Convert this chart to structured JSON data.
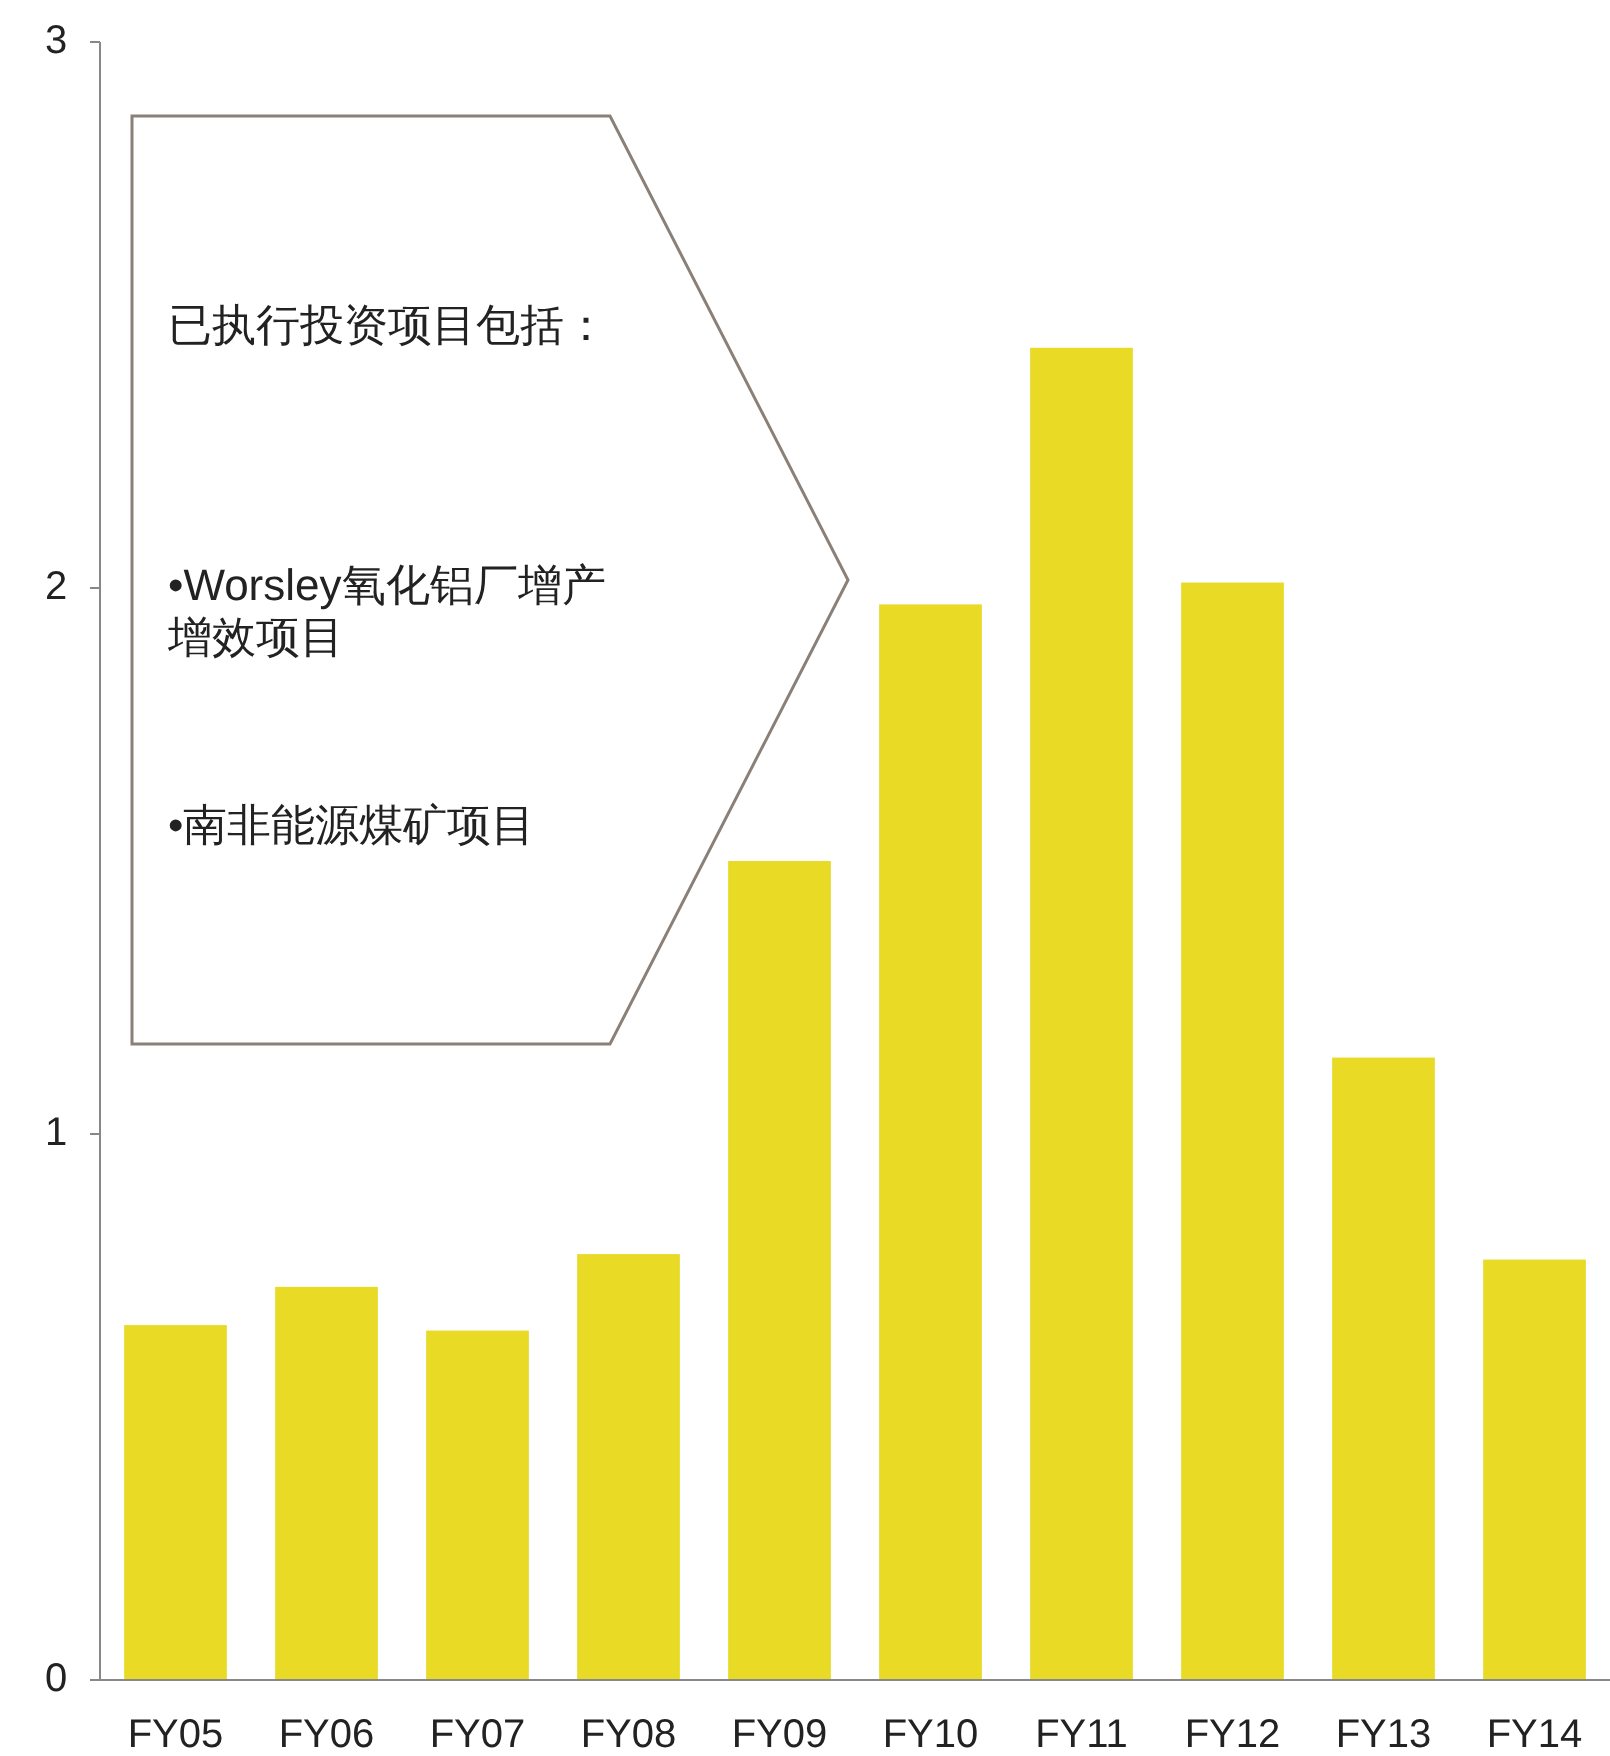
{
  "chart_data": {
    "type": "bar",
    "categories": [
      "FY05",
      "FY06",
      "FY07",
      "FY08",
      "FY09",
      "FY10",
      "FY11",
      "FY12",
      "FY13",
      "FY14"
    ],
    "values": [
      0.65,
      0.72,
      0.64,
      0.78,
      1.5,
      1.97,
      2.44,
      2.01,
      1.14,
      0.77
    ],
    "color": "#e8da25",
    "ylim": [
      0,
      3
    ],
    "yticks": [
      0,
      1,
      2,
      3
    ],
    "annotations": [
      "已执行投资项目包括：",
      "•Worsley氧化铝厂增产增效项目",
      "•南非能源煤矿项目"
    ]
  }
}
